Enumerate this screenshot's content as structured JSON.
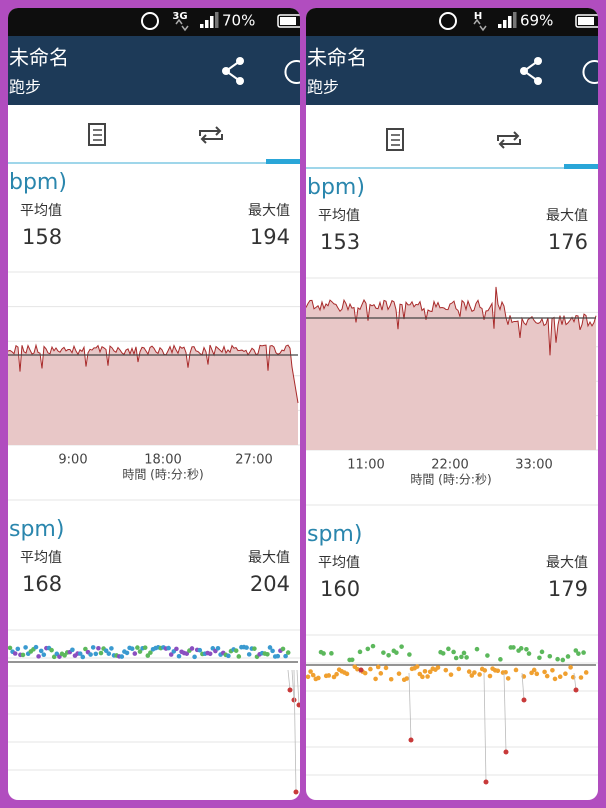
{
  "screens": [
    {
      "status": {
        "network": "3G",
        "battery": "70%"
      },
      "title": "未命名",
      "subtitle": "跑步",
      "heart_rate": {
        "unit": "bpm)",
        "avg_label": "平均值",
        "avg": 158,
        "max_label": "最大值",
        "max": 194,
        "xticks": [
          "9:00",
          "18:00",
          "27:00"
        ],
        "xlabel": "時間 (時:分:秒)"
      },
      "cadence": {
        "unit": "spm)",
        "avg_label": "平均值",
        "avg": 168,
        "max_label": "最大值",
        "max": 204
      }
    },
    {
      "status": {
        "network": "H",
        "battery": "69%"
      },
      "title": "未命名",
      "subtitle": "跑步",
      "heart_rate": {
        "unit": "bpm)",
        "avg_label": "平均值",
        "avg": 153,
        "max_label": "最大值",
        "max": 176,
        "xticks": [
          "11:00",
          "22:00",
          "33:00"
        ],
        "xlabel": "時間 (時:分:秒)"
      },
      "cadence": {
        "unit": "spm)",
        "avg_label": "平均值",
        "avg": 160,
        "max_label": "最大值",
        "max": 179
      }
    }
  ]
}
